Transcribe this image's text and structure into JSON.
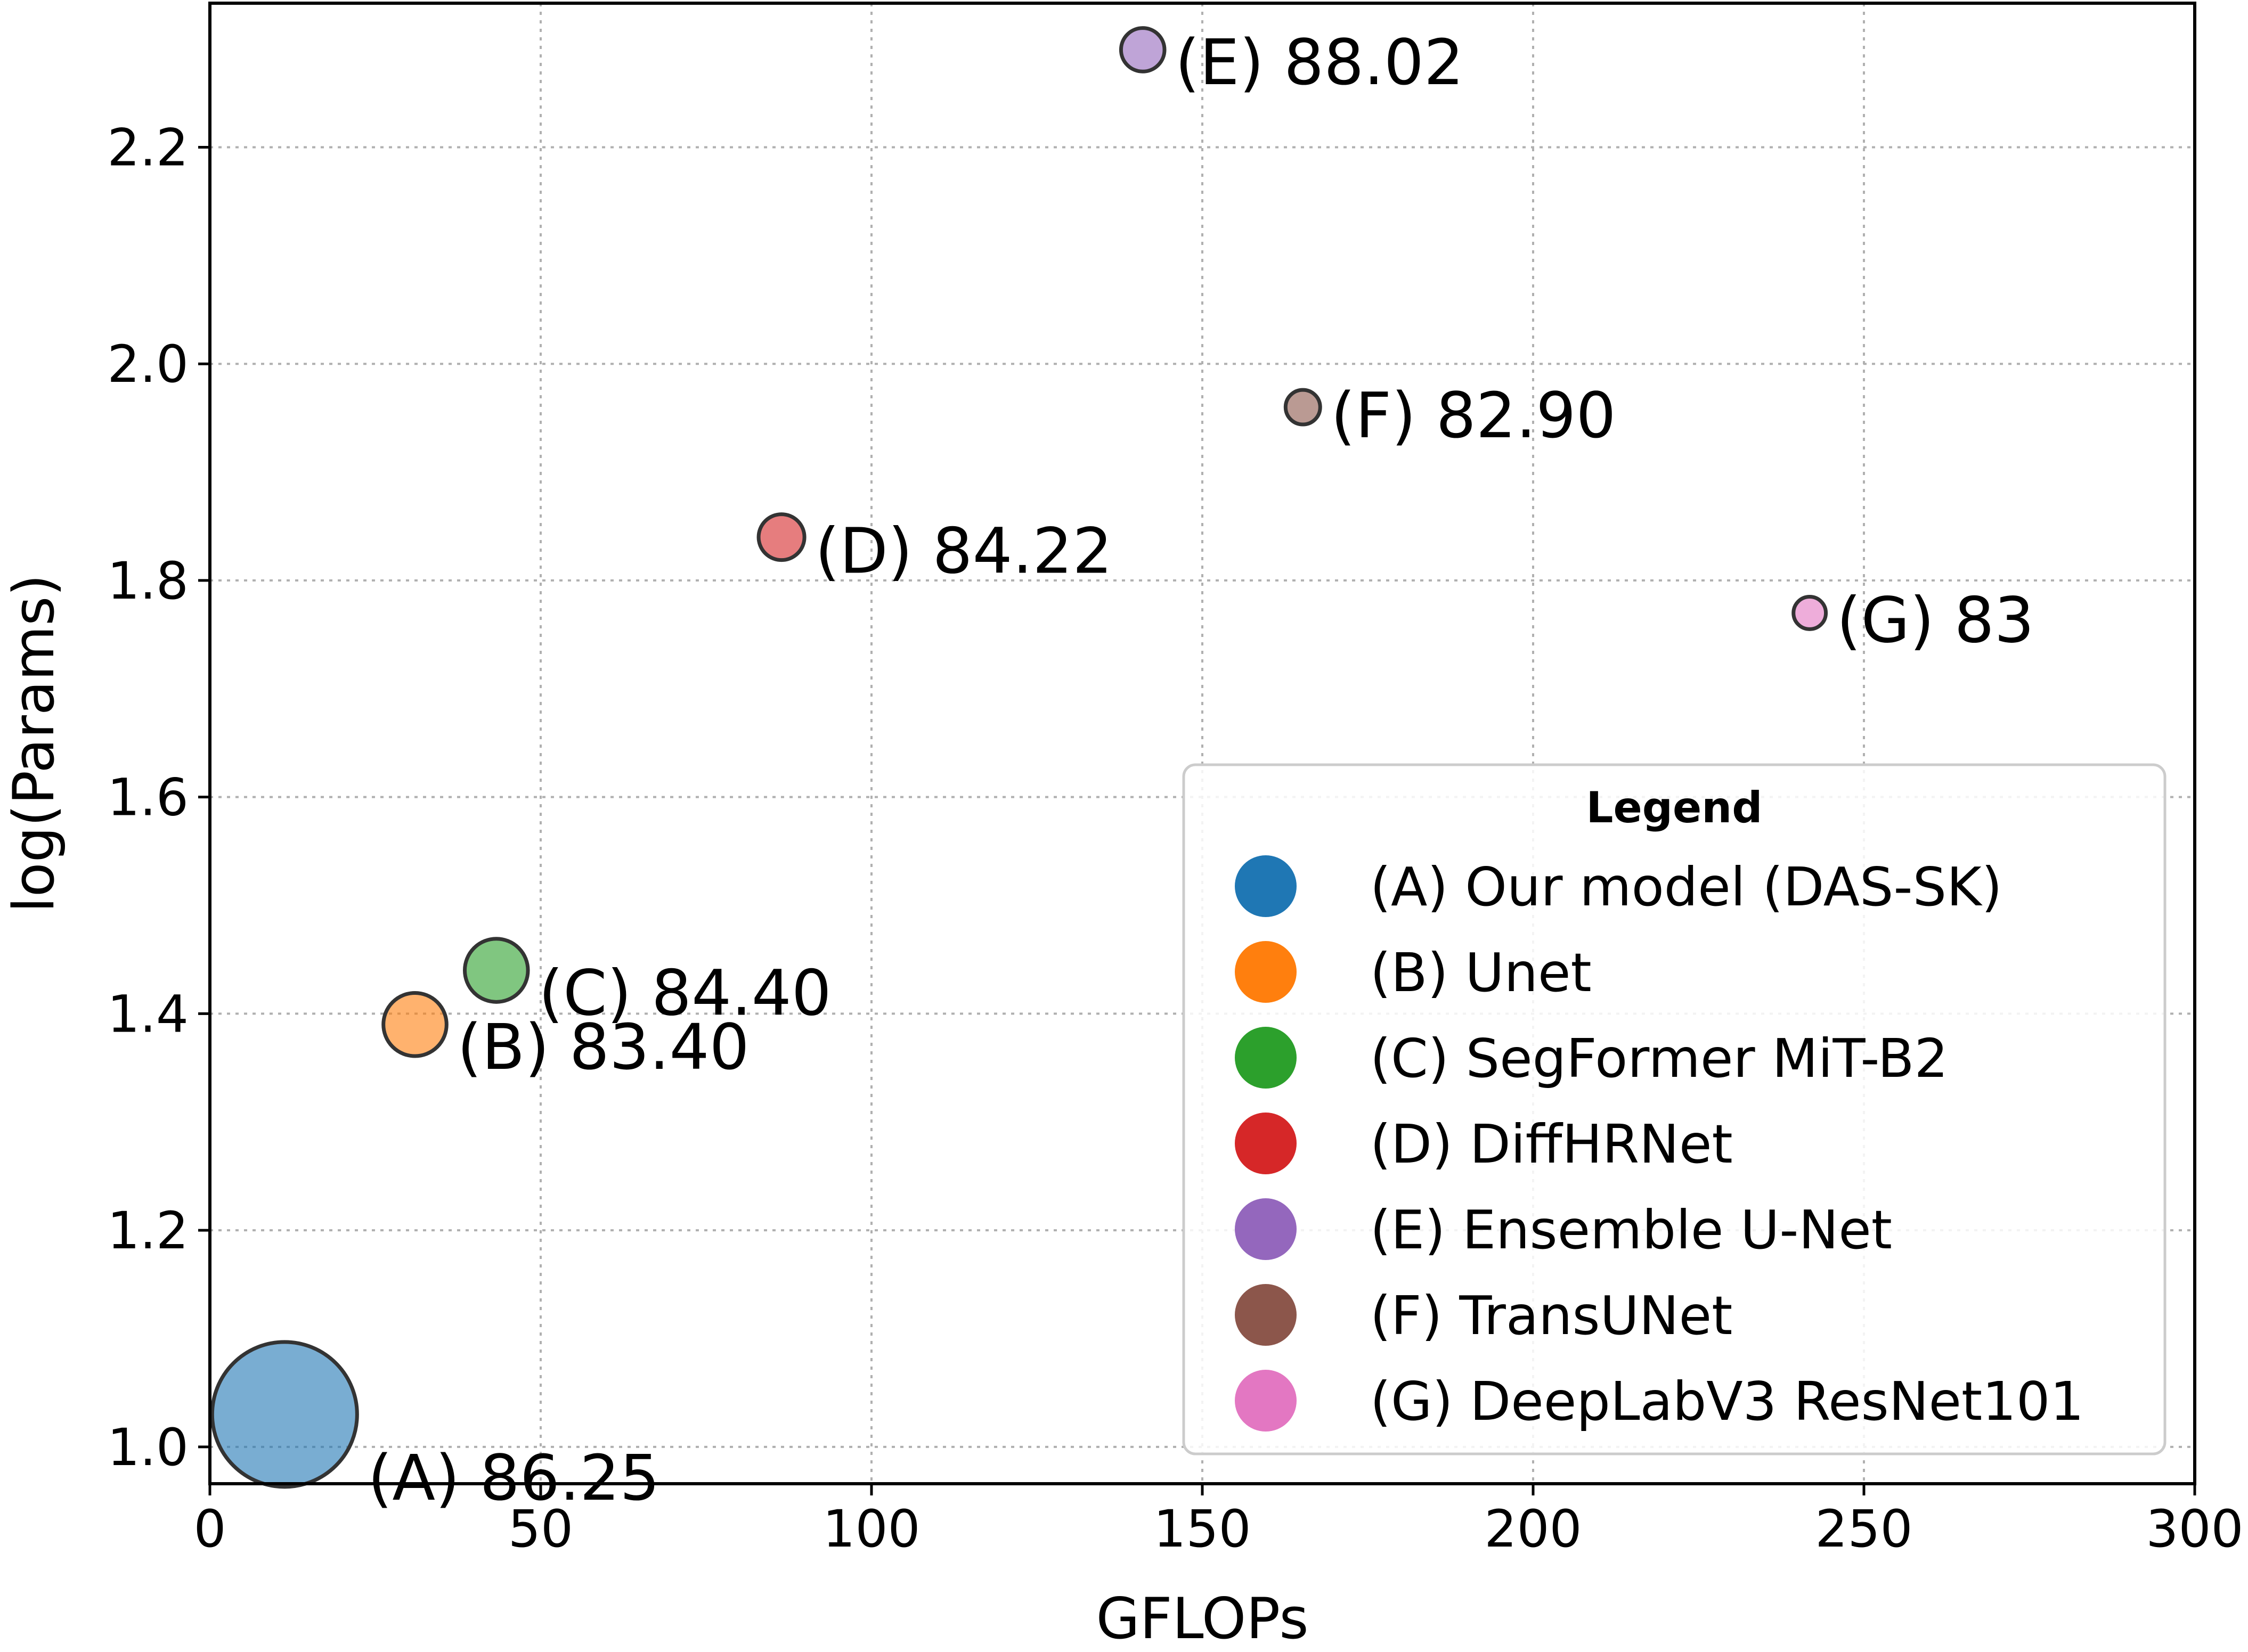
{
  "chart_data": {
    "type": "scatter",
    "title": "",
    "xlabel": "GFLOPs",
    "ylabel": "log(Params)",
    "xlim": [
      0,
      300
    ],
    "ylim": [
      0.966,
      2.333
    ],
    "xticks": [
      0,
      50,
      100,
      150,
      200,
      250,
      300
    ],
    "yticks": [
      1.0,
      1.2,
      1.4,
      1.6,
      1.8,
      2.0,
      2.2
    ],
    "grid": true,
    "legend_title": "Legend",
    "legend_position": "lower-right",
    "series": [
      {
        "id": "A",
        "name": "(A) Our model (DAS-SK)",
        "label": "(A) 86.25",
        "x": 11.3,
        "y": 1.03,
        "size": 1.0,
        "color": "#1f77b4"
      },
      {
        "id": "B",
        "name": "(B) Unet",
        "label": "(B) 83.40",
        "x": 31.0,
        "y": 1.39,
        "size": 0.19,
        "color": "#ff7f0e"
      },
      {
        "id": "C",
        "name": "(C) SegFormer MiT-B2",
        "label": "(C) 84.40",
        "x": 43.3,
        "y": 1.44,
        "size": 0.19,
        "color": "#2ca02c"
      },
      {
        "id": "D",
        "name": "(D) DiffHRNet",
        "label": "(D) 84.22",
        "x": 86.4,
        "y": 1.84,
        "size": 0.1,
        "color": "#d62728"
      },
      {
        "id": "E",
        "name": "(E) Ensemble U-Net",
        "label": "(E) 88.02",
        "x": 141.0,
        "y": 2.29,
        "size": 0.09,
        "color": "#9467bd"
      },
      {
        "id": "F",
        "name": "(F) TransUNet",
        "label": "(F) 82.90",
        "x": 165.2,
        "y": 1.96,
        "size": 0.057,
        "color": "#8c564b"
      },
      {
        "id": "G",
        "name": "(G) DeepLabV3 ResNet101",
        "label": "(G) 83",
        "x": 241.8,
        "y": 1.77,
        "size": 0.05,
        "color": "#e377c2"
      }
    ]
  }
}
